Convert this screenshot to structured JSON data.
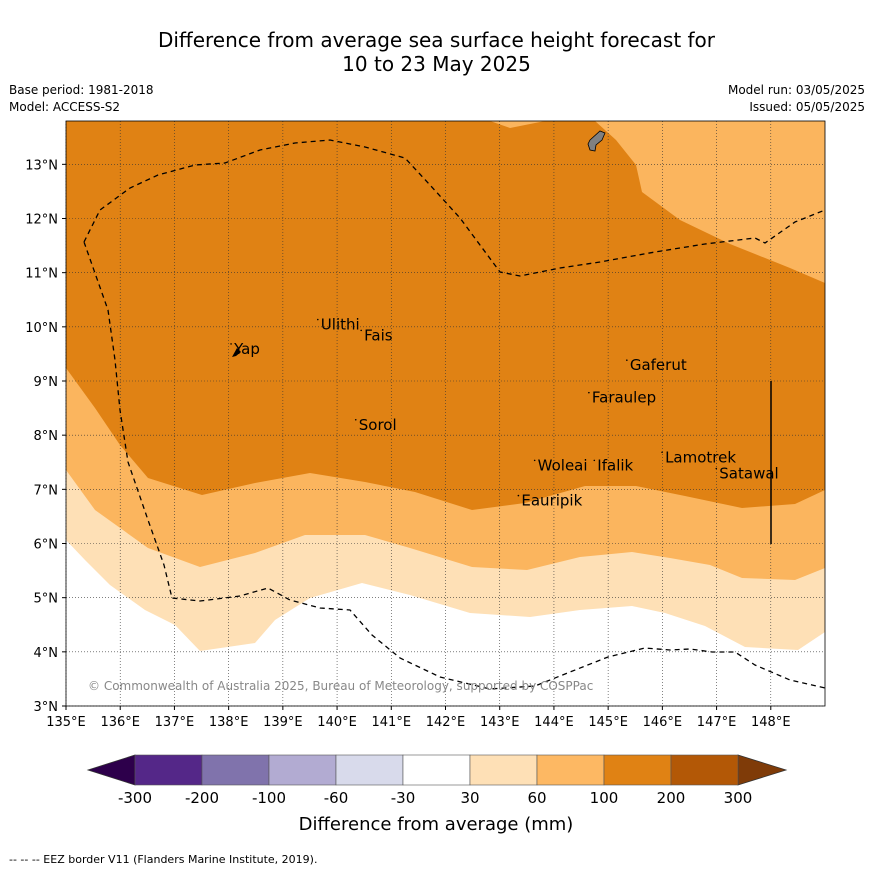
{
  "title": {
    "line1": "Difference from average sea surface height forecast for",
    "line2": "10 to 23 May 2025"
  },
  "meta": {
    "base_period": "Base period: 1981-2018",
    "model": "Model: ACCESS-S2",
    "model_run": "Model run: 03/05/2025",
    "issued": "Issued: 05/05/2025"
  },
  "map": {
    "lon_range": [
      135,
      149
    ],
    "lat_range": [
      3,
      13.8
    ],
    "lon_ticks": [
      "135°E",
      "136°E",
      "137°E",
      "138°E",
      "139°E",
      "140°E",
      "141°E",
      "142°E",
      "143°E",
      "144°E",
      "145°E",
      "146°E",
      "147°E",
      "148°E"
    ],
    "lat_ticks": [
      "3°N",
      "4°N",
      "5°N",
      "6°N",
      "7°N",
      "8°N",
      "9°N",
      "10°N",
      "11°N",
      "12°N",
      "13°N"
    ],
    "places": [
      {
        "name": "Yap",
        "lon": 138.1,
        "lat": 9.5
      },
      {
        "name": "Ulithi",
        "lon": 139.7,
        "lat": 9.95
      },
      {
        "name": "Fais",
        "lon": 140.5,
        "lat": 9.75
      },
      {
        "name": "Gaferut",
        "lon": 145.4,
        "lat": 9.2
      },
      {
        "name": "Faraulep",
        "lon": 144.7,
        "lat": 8.6
      },
      {
        "name": "Sorol",
        "lon": 140.4,
        "lat": 8.1
      },
      {
        "name": "Lamotrek",
        "lon": 146.05,
        "lat": 7.5
      },
      {
        "name": "Satawal",
        "lon": 147.05,
        "lat": 7.2
      },
      {
        "name": "Woleai",
        "lon": 143.7,
        "lat": 7.35
      },
      {
        "name": "Ifalik",
        "lon": 144.8,
        "lat": 7.35
      },
      {
        "name": "Eauripik",
        "lon": 143.4,
        "lat": 6.7
      }
    ],
    "copyright": "© Commonwealth of Australia 2025, Bureau of Meteorology, supported by COSPPac",
    "colors": {
      "c30_60": "#fee0b6",
      "c60_100": "#fbb55e",
      "c100_200": "#e08214",
      "c200_300": "#b35806",
      "land": "#808080"
    }
  },
  "colorbar": {
    "ticks": [
      "-300",
      "-200",
      "-100",
      "-60",
      "-30",
      "30",
      "60",
      "100",
      "200",
      "300"
    ],
    "colors": [
      "#542788",
      "#8073ac",
      "#b2abd2",
      "#d8daeb",
      "#ffffff",
      "#fee0b6",
      "#fdb863",
      "#e08214",
      "#b35806"
    ],
    "under_color": "#2d004b",
    "over_color": "#7f3b08",
    "label": "Difference from average (mm)"
  },
  "footer": "--  --  -- EEZ border V11 (Flanders Marine Institute, 2019)."
}
